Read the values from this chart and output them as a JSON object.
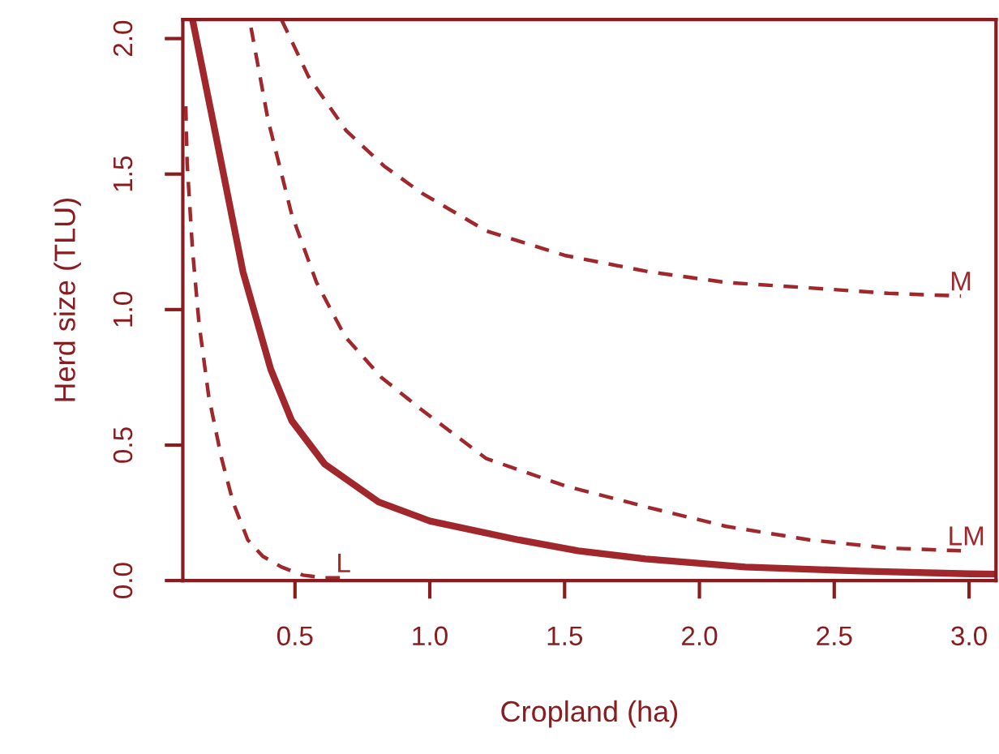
{
  "chart_data": {
    "type": "line",
    "xlabel": "Cropland (ha)",
    "ylabel": "Herd size (TLU)",
    "xlim": [
      0.084,
      3.1
    ],
    "ylim": [
      0,
      2.07
    ],
    "xticks": [
      0.5,
      {
        "value": 1.0,
        "label": "1.0"
      },
      1.5,
      {
        "value": 2.0,
        "label": "2.0"
      },
      2.5,
      {
        "value": 3.0,
        "label": "3.0"
      }
    ],
    "yticks": [
      {
        "value": 0,
        "label": "0.0"
      },
      0.5,
      {
        "value": 1.0,
        "label": "1.0"
      },
      1.5,
      {
        "value": 2.0,
        "label": "2.0"
      }
    ],
    "grid": false,
    "legend": false,
    "marker": "none",
    "series": [
      {
        "color": "#a0282c",
        "line_style": "dashed",
        "x": [
          0.095,
          0.1,
          0.12,
          0.144,
          0.18,
          0.228,
          0.27,
          0.325,
          0.38,
          0.45,
          0.53,
          0.61,
          0.68
        ],
        "values": [
          1.75,
          1.54,
          1.22,
          0.95,
          0.68,
          0.45,
          0.29,
          0.15,
          0.09,
          0.05,
          0.02,
          0.01,
          0.01
        ]
      },
      {
        "color": "#a0282c",
        "line_style": "solid",
        "x": [
          0.12,
          0.205,
          0.307,
          0.41,
          0.488,
          0.61,
          0.81,
          1.0,
          1.33,
          1.55,
          1.8,
          2.17,
          2.6,
          3.0,
          3.1
        ],
        "values": [
          2.07,
          1.65,
          1.14,
          0.78,
          0.59,
          0.43,
          0.29,
          0.22,
          0.15,
          0.11,
          0.08,
          0.05,
          0.035,
          0.025,
          0.024
        ]
      },
      {
        "color": "#a0282c",
        "line_style": "dashed",
        "x": [
          0.337,
          0.4,
          0.488,
          0.58,
          0.686,
          0.82,
          0.97,
          1.21,
          1.5,
          1.81,
          2.1,
          2.41,
          2.7,
          2.97
        ],
        "values": [
          2.04,
          1.7,
          1.35,
          1.1,
          0.9,
          0.75,
          0.63,
          0.45,
          0.35,
          0.27,
          0.2,
          0.15,
          0.12,
          0.11
        ]
      },
      {
        "color": "#a0282c",
        "line_style": "dashed",
        "x": [
          0.45,
          0.55,
          0.69,
          0.83,
          0.97,
          1.21,
          1.5,
          1.81,
          2.1,
          2.41,
          2.7,
          2.97
        ],
        "values": [
          2.07,
          1.86,
          1.66,
          1.53,
          1.43,
          1.29,
          1.2,
          1.14,
          1.1,
          1.08,
          1.06,
          1.05
        ]
      }
    ],
    "annotations": [
      {
        "text": "L",
        "x": 0.68,
        "y": 0.01
      },
      {
        "text": "LM",
        "x": 2.99,
        "y": 0.11
      },
      {
        "text": "M",
        "x": 2.97,
        "y": 1.05
      }
    ]
  }
}
